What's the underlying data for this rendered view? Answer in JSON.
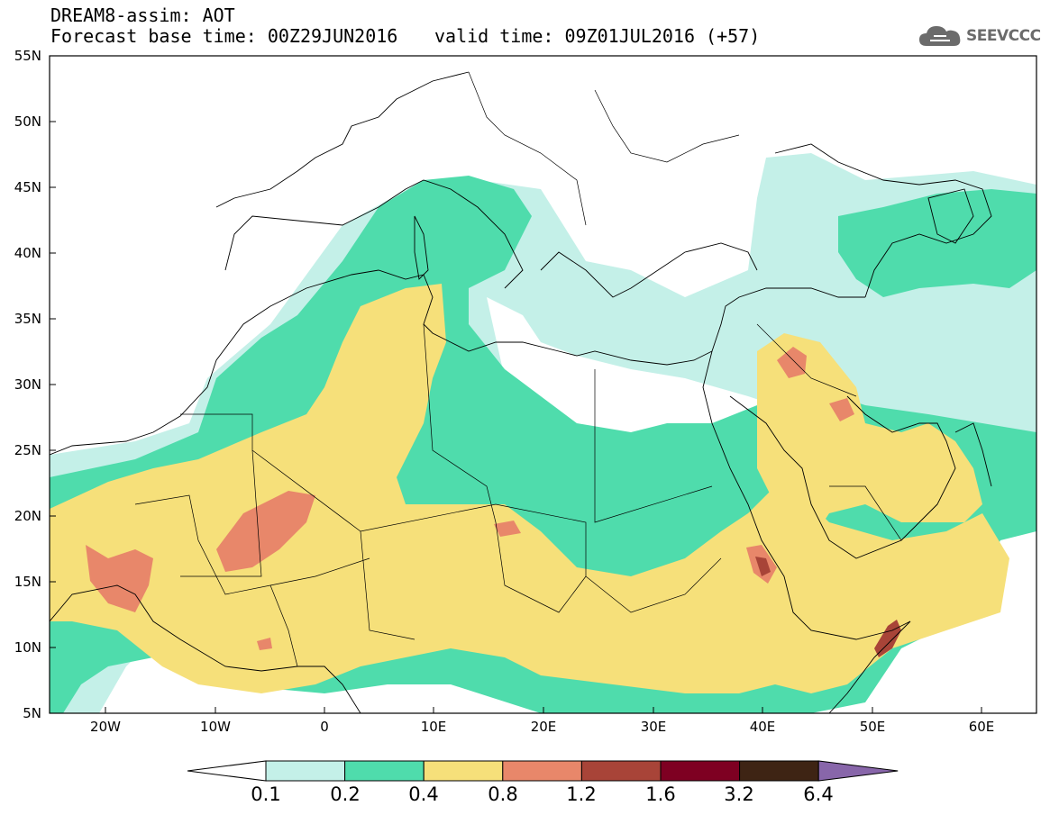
{
  "header": {
    "title": "DREAM8-assim: AOT",
    "base_time": "Forecast base time: 00Z29JUN2016",
    "valid_time": "valid time: 09Z01JUL2016 (+57)"
  },
  "logo": {
    "text": "SEEVCCC",
    "icon": "cloud-icon"
  },
  "map": {
    "lat_ticks": [
      "55N",
      "50N",
      "45N",
      "40N",
      "35N",
      "30N",
      "25N",
      "20N",
      "15N",
      "10N",
      "5N"
    ],
    "lon_ticks": [
      "20W",
      "10W",
      "0",
      "10E",
      "20E",
      "30E",
      "40E",
      "50E",
      "60E"
    ]
  },
  "colorbar": {
    "labels": [
      "0.1",
      "0.2",
      "0.4",
      "0.8",
      "1.2",
      "1.6",
      "3.2",
      "6.4"
    ],
    "colors": [
      "#ffffff",
      "#c4f0e8",
      "#4fdcac",
      "#f6e07a",
      "#e8876a",
      "#a84438",
      "#7e0022",
      "#3e2414",
      "#8866aa"
    ]
  },
  "colors": {
    "level_0_1": "#c4f0e8",
    "level_0_2": "#4fdcac",
    "level_0_4": "#f6e07a",
    "level_0_8": "#e8876a",
    "level_1_2": "#a84438"
  }
}
